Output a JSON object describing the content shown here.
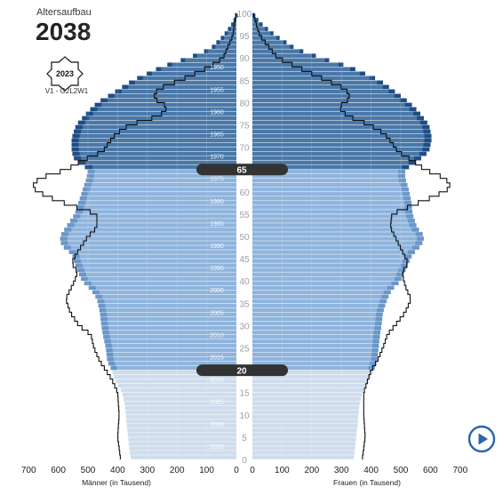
{
  "header": {
    "label": "Altersaufbau",
    "year": "2038",
    "badge_year": "2023",
    "variant": "V1 - G2L2W1"
  },
  "colors": {
    "dark_band": "#4a78a8",
    "dark_band_edge": "#1f4e86",
    "mid_band": "#8fb4dd",
    "mid_band_edge": "#6a96c8",
    "light_band": "#cfdcec",
    "outline": "#111111",
    "pill": "#333333",
    "play_accent": "#2a66a8"
  },
  "chart_data": {
    "type": "population-pyramid",
    "xlabel_left": "Männer (in Tausend)",
    "xlabel_right": "Frauen (in Tausend)",
    "xlim": [
      0,
      700
    ],
    "x_ticks": [
      700,
      600,
      500,
      400,
      300,
      200,
      100,
      0
    ],
    "x_ticks_right": [
      0,
      100,
      200,
      300,
      400,
      500,
      600,
      700
    ],
    "age_ticks": [
      0,
      5,
      10,
      15,
      20,
      25,
      30,
      35,
      40,
      45,
      50,
      55,
      60,
      65,
      70,
      75,
      80,
      85,
      90,
      95,
      100
    ],
    "year_ticks": [
      {
        "year": "1950",
        "age": 88
      },
      {
        "year": "1955",
        "age": 83
      },
      {
        "year": "1960",
        "age": 78
      },
      {
        "year": "1965",
        "age": 73
      },
      {
        "year": "1970",
        "age": 68
      },
      {
        "year": "1975",
        "age": 63
      },
      {
        "year": "1980",
        "age": 58
      },
      {
        "year": "1985",
        "age": 53
      },
      {
        "year": "1990",
        "age": 48
      },
      {
        "year": "1995",
        "age": 43
      },
      {
        "year": "2000",
        "age": 38
      },
      {
        "year": "2005",
        "age": 33
      },
      {
        "year": "2010",
        "age": 28
      },
      {
        "year": "2015",
        "age": 23
      },
      {
        "year": "2020",
        "age": 18
      },
      {
        "year": "2025",
        "age": 13
      },
      {
        "year": "2030",
        "age": 8
      },
      {
        "year": "2035",
        "age": 3
      }
    ],
    "band_markers": [
      "65",
      "20"
    ],
    "band_bounds": [
      20,
      65
    ],
    "men_2038": [
      {
        "age": 0,
        "v": 355
      },
      {
        "age": 2,
        "v": 360
      },
      {
        "age": 5,
        "v": 365
      },
      {
        "age": 8,
        "v": 370
      },
      {
        "age": 12,
        "v": 375
      },
      {
        "age": 15,
        "v": 385
      },
      {
        "age": 18,
        "v": 410
      },
      {
        "age": 20,
        "v": 420
      },
      {
        "age": 22,
        "v": 435
      },
      {
        "age": 25,
        "v": 440
      },
      {
        "age": 28,
        "v": 450
      },
      {
        "age": 30,
        "v": 455
      },
      {
        "age": 33,
        "v": 460
      },
      {
        "age": 36,
        "v": 470
      },
      {
        "age": 38,
        "v": 490
      },
      {
        "age": 40,
        "v": 520
      },
      {
        "age": 43,
        "v": 540
      },
      {
        "age": 46,
        "v": 555
      },
      {
        "age": 48,
        "v": 590
      },
      {
        "age": 50,
        "v": 595
      },
      {
        "age": 52,
        "v": 575
      },
      {
        "age": 55,
        "v": 545
      },
      {
        "age": 58,
        "v": 530
      },
      {
        "age": 61,
        "v": 515
      },
      {
        "age": 63,
        "v": 505
      },
      {
        "age": 65,
        "v": 500
      },
      {
        "age": 66,
        "v": 520
      },
      {
        "age": 67,
        "v": 545
      },
      {
        "age": 69,
        "v": 555
      },
      {
        "age": 72,
        "v": 555
      },
      {
        "age": 75,
        "v": 540
      },
      {
        "age": 78,
        "v": 500
      },
      {
        "age": 80,
        "v": 470
      },
      {
        "age": 82,
        "v": 420
      },
      {
        "age": 85,
        "v": 350
      },
      {
        "age": 88,
        "v": 255
      },
      {
        "age": 90,
        "v": 165
      },
      {
        "age": 92,
        "v": 90
      },
      {
        "age": 95,
        "v": 45
      },
      {
        "age": 98,
        "v": 12
      },
      {
        "age": 100,
        "v": 2
      }
    ],
    "women_2038": [
      {
        "age": 0,
        "v": 340
      },
      {
        "age": 2,
        "v": 345
      },
      {
        "age": 5,
        "v": 350
      },
      {
        "age": 8,
        "v": 355
      },
      {
        "age": 12,
        "v": 360
      },
      {
        "age": 15,
        "v": 370
      },
      {
        "age": 18,
        "v": 395
      },
      {
        "age": 20,
        "v": 410
      },
      {
        "age": 22,
        "v": 420
      },
      {
        "age": 25,
        "v": 425
      },
      {
        "age": 28,
        "v": 430
      },
      {
        "age": 30,
        "v": 435
      },
      {
        "age": 33,
        "v": 440
      },
      {
        "age": 36,
        "v": 455
      },
      {
        "age": 38,
        "v": 470
      },
      {
        "age": 40,
        "v": 500
      },
      {
        "age": 43,
        "v": 520
      },
      {
        "age": 46,
        "v": 540
      },
      {
        "age": 48,
        "v": 570
      },
      {
        "age": 50,
        "v": 580
      },
      {
        "age": 52,
        "v": 555
      },
      {
        "age": 55,
        "v": 540
      },
      {
        "age": 58,
        "v": 535
      },
      {
        "age": 61,
        "v": 525
      },
      {
        "age": 63,
        "v": 515
      },
      {
        "age": 65,
        "v": 515
      },
      {
        "age": 66,
        "v": 540
      },
      {
        "age": 67,
        "v": 560
      },
      {
        "age": 69,
        "v": 595
      },
      {
        "age": 72,
        "v": 605
      },
      {
        "age": 75,
        "v": 595
      },
      {
        "age": 78,
        "v": 560
      },
      {
        "age": 80,
        "v": 530
      },
      {
        "age": 82,
        "v": 490
      },
      {
        "age": 85,
        "v": 430
      },
      {
        "age": 88,
        "v": 330
      },
      {
        "age": 90,
        "v": 235
      },
      {
        "age": 92,
        "v": 150
      },
      {
        "age": 95,
        "v": 80
      },
      {
        "age": 98,
        "v": 25
      },
      {
        "age": 100,
        "v": 5
      }
    ],
    "men_2023": [
      {
        "age": 0,
        "v": 390
      },
      {
        "age": 5,
        "v": 400
      },
      {
        "age": 10,
        "v": 395
      },
      {
        "age": 15,
        "v": 400
      },
      {
        "age": 18,
        "v": 420
      },
      {
        "age": 20,
        "v": 440
      },
      {
        "age": 22,
        "v": 460
      },
      {
        "age": 25,
        "v": 480
      },
      {
        "age": 28,
        "v": 490
      },
      {
        "age": 30,
        "v": 530
      },
      {
        "age": 33,
        "v": 560
      },
      {
        "age": 36,
        "v": 575
      },
      {
        "age": 38,
        "v": 560
      },
      {
        "age": 40,
        "v": 545
      },
      {
        "age": 42,
        "v": 535
      },
      {
        "age": 44,
        "v": 555
      },
      {
        "age": 46,
        "v": 540
      },
      {
        "age": 48,
        "v": 520
      },
      {
        "age": 50,
        "v": 500
      },
      {
        "age": 52,
        "v": 470
      },
      {
        "age": 55,
        "v": 470
      },
      {
        "age": 57,
        "v": 560
      },
      {
        "age": 59,
        "v": 640
      },
      {
        "age": 61,
        "v": 690
      },
      {
        "age": 63,
        "v": 665
      },
      {
        "age": 65,
        "v": 570
      },
      {
        "age": 67,
        "v": 520
      },
      {
        "age": 69,
        "v": 450
      },
      {
        "age": 71,
        "v": 430
      },
      {
        "age": 73,
        "v": 405
      },
      {
        "age": 75,
        "v": 360
      },
      {
        "age": 77,
        "v": 260
      },
      {
        "age": 79,
        "v": 230
      },
      {
        "age": 81,
        "v": 280
      },
      {
        "age": 83,
        "v": 265
      },
      {
        "age": 85,
        "v": 190
      },
      {
        "age": 88,
        "v": 90
      },
      {
        "age": 90,
        "v": 45
      },
      {
        "age": 95,
        "v": 12
      },
      {
        "age": 100,
        "v": 1
      }
    ],
    "women_2023": [
      {
        "age": 0,
        "v": 370
      },
      {
        "age": 5,
        "v": 380
      },
      {
        "age": 10,
        "v": 375
      },
      {
        "age": 15,
        "v": 375
      },
      {
        "age": 18,
        "v": 390
      },
      {
        "age": 20,
        "v": 400
      },
      {
        "age": 22,
        "v": 420
      },
      {
        "age": 25,
        "v": 440
      },
      {
        "age": 28,
        "v": 455
      },
      {
        "age": 30,
        "v": 480
      },
      {
        "age": 33,
        "v": 515
      },
      {
        "age": 36,
        "v": 535
      },
      {
        "age": 38,
        "v": 520
      },
      {
        "age": 40,
        "v": 510
      },
      {
        "age": 42,
        "v": 505
      },
      {
        "age": 44,
        "v": 525
      },
      {
        "age": 46,
        "v": 510
      },
      {
        "age": 48,
        "v": 495
      },
      {
        "age": 50,
        "v": 480
      },
      {
        "age": 52,
        "v": 465
      },
      {
        "age": 55,
        "v": 470
      },
      {
        "age": 57,
        "v": 540
      },
      {
        "age": 59,
        "v": 615
      },
      {
        "age": 61,
        "v": 670
      },
      {
        "age": 63,
        "v": 650
      },
      {
        "age": 65,
        "v": 580
      },
      {
        "age": 67,
        "v": 540
      },
      {
        "age": 69,
        "v": 490
      },
      {
        "age": 71,
        "v": 470
      },
      {
        "age": 73,
        "v": 445
      },
      {
        "age": 75,
        "v": 395
      },
      {
        "age": 77,
        "v": 320
      },
      {
        "age": 79,
        "v": 290
      },
      {
        "age": 81,
        "v": 330
      },
      {
        "age": 83,
        "v": 315
      },
      {
        "age": 85,
        "v": 250
      },
      {
        "age": 88,
        "v": 150
      },
      {
        "age": 90,
        "v": 85
      },
      {
        "age": 95,
        "v": 25
      },
      {
        "age": 100,
        "v": 2
      }
    ]
  }
}
